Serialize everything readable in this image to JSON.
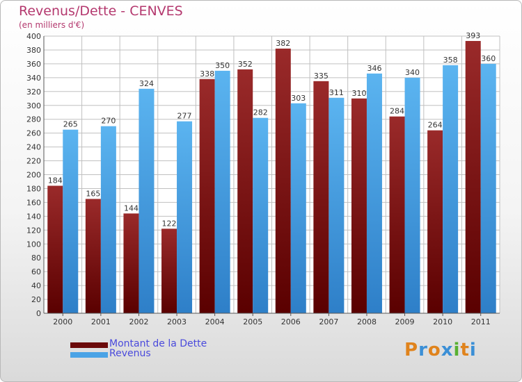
{
  "header": {
    "title": "Revenus/Dette - CENVES",
    "subtitle": "(en milliers d'€)"
  },
  "colors": {
    "dette": "#8b1a1a",
    "revenus": "#4aa3e6",
    "grid": "#c0c0c0",
    "axis_text": "#333333",
    "title": "#b4386e",
    "legend_text": "#4a4adc"
  },
  "chart_data": {
    "type": "bar",
    "categories": [
      "2000",
      "2001",
      "2002",
      "2003",
      "2004",
      "2005",
      "2006",
      "2007",
      "2008",
      "2009",
      "2010",
      "2011"
    ],
    "series": [
      {
        "name": "Montant de la Dette",
        "values": [
          184,
          165,
          144,
          122,
          338,
          352,
          382,
          335,
          310,
          284,
          264,
          393
        ]
      },
      {
        "name": "Revenus",
        "values": [
          265,
          270,
          324,
          277,
          350,
          282,
          303,
          311,
          346,
          340,
          358,
          360
        ]
      }
    ],
    "title": "Revenus/Dette - CENVES",
    "subtitle": "(en milliers d'€)",
    "xlabel": "",
    "ylabel": "",
    "ylim": [
      0,
      400
    ],
    "ytick_step": 20,
    "grid": true,
    "legend_position": "bottom-left"
  },
  "legend": {
    "items": [
      {
        "label": "Montant de la Dette",
        "color": "#6b0a0a"
      },
      {
        "label": "Revenus",
        "color": "#4aa3e6"
      }
    ]
  },
  "logo": {
    "letters": [
      "P",
      "r",
      "o",
      "x",
      "i",
      "t",
      "i"
    ],
    "colors": [
      "#e0831c",
      "#3b8fd6",
      "#e0831c",
      "#3b8fd6",
      "#58b032",
      "#e0831c",
      "#3b8fd6"
    ]
  }
}
